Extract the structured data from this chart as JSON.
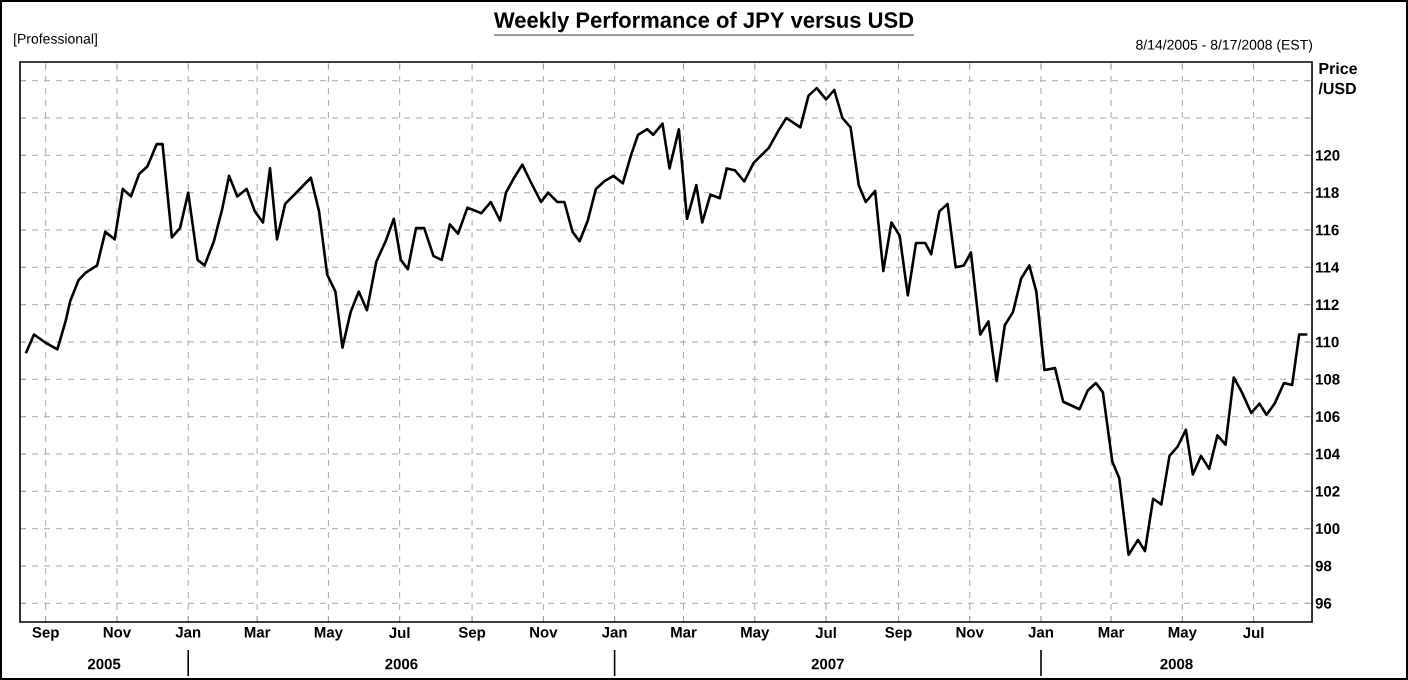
{
  "chart_data": {
    "type": "line",
    "title": "Weekly Performance of JPY versus USD",
    "subtitle": "8/14/2005 - 8/17/2008 (EST)",
    "ylabel": "Price /USD",
    "annotations": [
      "[Professional]",
      "2005",
      "2006",
      "2007",
      "2008"
    ],
    "xlim": [
      "2005-08-10",
      "2008-08-20"
    ],
    "ylim": [
      95,
      125
    ],
    "xticks": [
      {
        "value": "2005-09-01",
        "label": "Sep"
      },
      {
        "value": "2005-11-01",
        "label": "Nov"
      },
      {
        "value": "2006-01-01",
        "label": "Jan"
      },
      {
        "value": "2006-03-01",
        "label": "Mar"
      },
      {
        "value": "2006-05-01",
        "label": "May"
      },
      {
        "value": "2006-07-01",
        "label": "Jul"
      },
      {
        "value": "2006-09-01",
        "label": "Sep"
      },
      {
        "value": "2006-11-01",
        "label": "Nov"
      },
      {
        "value": "2007-01-01",
        "label": "Jan"
      },
      {
        "value": "2007-03-01",
        "label": "Mar"
      },
      {
        "value": "2007-05-01",
        "label": "May"
      },
      {
        "value": "2007-07-01",
        "label": "Jul"
      },
      {
        "value": "2007-09-01",
        "label": "Sep"
      },
      {
        "value": "2007-11-01",
        "label": "Nov"
      },
      {
        "value": "2008-01-01",
        "label": "Jan"
      },
      {
        "value": "2008-03-01",
        "label": "Mar"
      },
      {
        "value": "2008-05-01",
        "label": "May"
      },
      {
        "value": "2008-07-01",
        "label": "Jul"
      }
    ],
    "yticks": [
      96,
      98,
      100,
      102,
      104,
      106,
      108,
      110,
      112,
      114,
      116,
      118,
      120,
      {
        "value": 122,
        "label": null
      },
      {
        "value": 124,
        "label": null
      }
    ],
    "grid": true,
    "color": "#000000",
    "x": [
      "2005-08-15",
      "2005-08-22",
      "2005-08-31",
      "2005-09-11",
      "2005-09-18",
      "2005-09-22",
      "2005-09-29",
      "2005-10-05",
      "2005-10-15",
      "2005-10-22",
      "2005-10-30",
      "2005-11-06",
      "2005-11-13",
      "2005-11-20",
      "2005-11-27",
      "2005-12-05",
      "2005-12-10",
      "2005-12-18",
      "2005-12-25",
      "2006-01-01",
      "2006-01-09",
      "2006-01-15",
      "2006-01-23",
      "2006-01-30",
      "2006-02-05",
      "2006-02-12",
      "2006-02-20",
      "2006-02-27",
      "2006-03-06",
      "2006-03-12",
      "2006-03-18",
      "2006-03-25",
      "2006-04-02",
      "2006-04-16",
      "2006-04-23",
      "2006-04-30",
      "2006-05-07",
      "2006-05-13",
      "2006-05-20",
      "2006-05-27",
      "2006-06-03",
      "2006-06-11",
      "2006-06-19",
      "2006-06-26",
      "2006-07-02",
      "2006-07-08",
      "2006-07-15",
      "2006-07-22",
      "2006-07-30",
      "2006-08-06",
      "2006-08-13",
      "2006-08-20",
      "2006-08-28",
      "2006-09-09",
      "2006-09-17",
      "2006-09-25",
      "2006-09-30",
      "2006-10-07",
      "2006-10-14",
      "2006-10-21",
      "2006-10-30",
      "2006-11-05",
      "2006-11-13",
      "2006-11-19",
      "2006-11-26",
      "2006-12-02",
      "2006-12-09",
      "2006-12-16",
      "2006-12-23",
      "2006-12-31",
      "2007-01-08",
      "2007-01-15",
      "2007-01-21",
      "2007-01-29",
      "2007-02-03",
      "2007-02-11",
      "2007-02-17",
      "2007-02-25",
      "2007-03-04",
      "2007-03-12",
      "2007-03-17",
      "2007-03-24",
      "2007-04-01",
      "2007-04-07",
      "2007-04-14",
      "2007-04-22",
      "2007-04-30",
      "2007-05-13",
      "2007-05-21",
      "2007-05-28",
      "2007-06-09",
      "2007-06-16",
      "2007-06-23",
      "2007-07-01",
      "2007-07-08",
      "2007-07-15",
      "2007-07-22",
      "2007-07-29",
      "2007-08-04",
      "2007-08-12",
      "2007-08-19",
      "2007-08-26",
      "2007-09-02",
      "2007-09-09",
      "2007-09-16",
      "2007-09-24",
      "2007-09-29",
      "2007-10-06",
      "2007-10-13",
      "2007-10-20",
      "2007-10-27",
      "2007-11-02",
      "2007-11-10",
      "2007-11-17",
      "2007-11-24",
      "2007-12-01",
      "2007-12-08",
      "2007-12-15",
      "2007-12-22",
      "2007-12-28",
      "2008-01-04",
      "2008-01-13",
      "2008-01-20",
      "2008-02-03",
      "2008-02-10",
      "2008-02-17",
      "2008-02-23",
      "2008-03-02",
      "2008-03-08",
      "2008-03-16",
      "2008-03-24",
      "2008-03-30",
      "2008-04-06",
      "2008-04-13",
      "2008-04-20",
      "2008-04-27",
      "2008-05-04",
      "2008-05-10",
      "2008-05-17",
      "2008-05-24",
      "2008-05-31",
      "2008-06-07",
      "2008-06-14",
      "2008-06-21",
      "2008-06-29",
      "2008-07-06",
      "2008-07-12",
      "2008-07-19",
      "2008-07-27",
      "2008-08-03",
      "2008-08-09",
      "2008-08-16"
    ],
    "values": [
      109.4,
      110.4,
      110.0,
      109.6,
      111.1,
      112.2,
      113.3,
      113.7,
      114.1,
      115.9,
      115.5,
      118.2,
      117.8,
      119.0,
      119.4,
      120.6,
      120.6,
      115.6,
      116.1,
      118.0,
      114.4,
      114.1,
      115.4,
      117.1,
      118.9,
      117.8,
      118.2,
      117.0,
      116.4,
      119.3,
      115.5,
      117.4,
      117.9,
      118.8,
      117.0,
      113.6,
      112.7,
      109.7,
      111.6,
      112.7,
      111.7,
      114.3,
      115.4,
      116.6,
      114.4,
      113.9,
      116.1,
      116.1,
      114.6,
      114.4,
      116.3,
      115.8,
      117.2,
      116.9,
      117.5,
      116.5,
      118.0,
      118.8,
      119.5,
      118.6,
      117.5,
      118.0,
      117.5,
      117.5,
      115.9,
      115.4,
      116.5,
      118.2,
      118.6,
      118.9,
      118.5,
      120.0,
      121.1,
      121.4,
      121.1,
      121.7,
      119.3,
      121.4,
      116.6,
      118.4,
      116.4,
      117.9,
      117.7,
      119.3,
      119.2,
      118.6,
      119.6,
      120.4,
      121.3,
      122.0,
      121.5,
      123.2,
      123.6,
      123.0,
      123.5,
      122.0,
      121.5,
      118.4,
      117.5,
      118.1,
      113.8,
      116.4,
      115.7,
      112.5,
      115.3,
      115.3,
      114.7,
      117.0,
      117.4,
      114.0,
      114.1,
      114.8,
      110.4,
      111.1,
      107.9,
      110.9,
      111.6,
      113.4,
      114.1,
      112.7,
      108.5,
      108.6,
      106.8,
      106.4,
      107.4,
      107.8,
      107.3,
      103.6,
      102.7,
      98.6,
      99.4,
      98.8,
      101.6,
      101.3,
      103.9,
      104.4,
      105.3,
      102.9,
      103.9,
      103.2,
      105.0,
      104.5,
      108.1,
      107.3,
      106.2,
      106.7,
      106.1,
      106.7,
      107.8,
      107.7,
      110.4,
      110.4
    ]
  }
}
